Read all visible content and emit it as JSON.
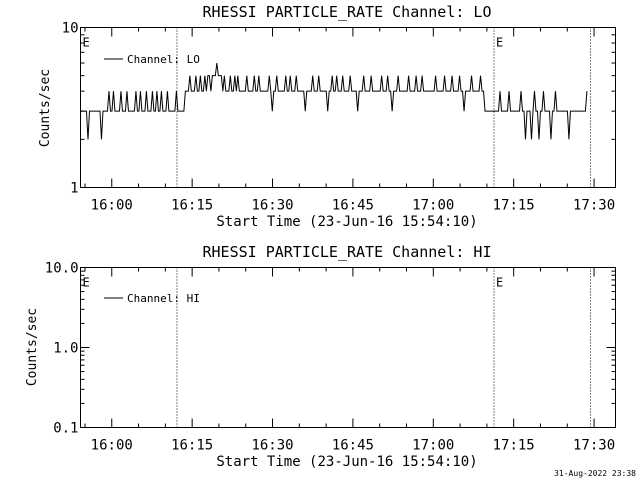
{
  "footer": {
    "timestamp": "31-Aug-2022 23:38"
  },
  "chart_data": [
    {
      "type": "line",
      "title": "RHESSI PARTICLE_RATE Channel: LO",
      "xlabel": "Start Time (23-Jun-16 15:54:10)",
      "ylabel": "Counts/sec",
      "yscale": "log",
      "xlim": [
        "15:54:10",
        "17:34:00"
      ],
      "ylim": [
        1,
        10
      ],
      "xticks": [
        "16:00",
        "16:15",
        "16:30",
        "16:45",
        "17:00",
        "17:15",
        "17:30"
      ],
      "yticks": [
        {
          "value": 1,
          "label": "1"
        },
        {
          "value": 10,
          "label": "10"
        }
      ],
      "vertical_markers": [
        {
          "time": "15:54:10",
          "label": "E"
        },
        {
          "time": "16:12:10",
          "label": ""
        },
        {
          "time": "17:11:20",
          "label": "E"
        },
        {
          "time": "17:29:20",
          "label": ""
        }
      ],
      "legend": {
        "position": "top-left",
        "entries": [
          "Channel: LO"
        ]
      },
      "series": [
        {
          "name": "Channel: LO",
          "time_range": [
            "15:54:10",
            "17:28:40"
          ],
          "values": [
            3,
            3,
            3,
            3,
            3,
            2,
            3,
            3,
            3,
            3,
            3,
            3,
            3,
            3,
            2,
            3,
            3,
            3,
            3,
            4,
            3,
            3,
            4,
            3,
            3,
            3,
            3,
            4,
            3,
            3,
            3,
            4,
            3,
            3,
            3,
            3,
            3,
            4,
            3,
            3,
            4,
            3,
            3,
            3,
            4,
            3,
            3,
            3,
            4,
            3,
            3,
            4,
            3,
            3,
            4,
            3,
            3,
            3,
            4,
            3,
            3,
            3,
            3,
            3,
            4,
            3,
            3,
            3,
            3,
            3,
            4,
            4,
            4,
            5,
            4,
            4,
            4,
            5,
            4,
            4,
            5,
            4,
            4,
            5,
            4,
            5,
            5,
            4,
            5,
            5,
            5,
            6,
            5,
            5,
            5,
            4,
            5,
            4,
            4,
            4,
            5,
            4,
            4,
            5,
            4,
            5,
            4,
            4,
            4,
            4,
            4,
            5,
            4,
            4,
            4,
            4,
            5,
            4,
            4,
            5,
            4,
            4,
            4,
            4,
            4,
            4,
            5,
            4,
            3,
            4,
            4,
            5,
            4,
            4,
            4,
            4,
            4,
            5,
            4,
            4,
            5,
            4,
            4,
            4,
            5,
            4,
            4,
            4,
            4,
            4,
            3,
            4,
            4,
            4,
            4,
            5,
            4,
            4,
            4,
            5,
            4,
            4,
            4,
            4,
            4,
            3,
            4,
            4,
            5,
            4,
            4,
            5,
            4,
            4,
            4,
            5,
            4,
            4,
            4,
            4,
            5,
            4,
            4,
            4,
            4,
            3,
            4,
            4,
            4,
            5,
            4,
            4,
            4,
            4,
            5,
            4,
            4,
            4,
            4,
            4,
            4,
            5,
            4,
            4,
            4,
            5,
            4,
            4,
            3,
            4,
            4,
            4,
            5,
            4,
            4,
            4,
            4,
            4,
            4,
            5,
            4,
            4,
            4,
            4,
            5,
            4,
            4,
            4,
            5,
            4,
            4,
            4,
            4,
            4,
            4,
            4,
            4,
            5,
            4,
            4,
            4,
            4,
            4,
            5,
            4,
            4,
            4,
            4,
            5,
            4,
            4,
            4,
            4,
            5,
            4,
            4,
            3,
            4,
            4,
            4,
            4,
            5,
            4,
            4,
            4,
            4,
            4,
            5,
            4,
            4,
            3,
            3,
            3,
            3,
            3,
            3,
            3,
            3,
            3,
            3,
            4,
            3,
            3,
            3,
            3,
            3,
            4,
            3,
            3,
            3,
            3,
            3,
            3,
            3,
            4,
            3,
            3,
            2,
            3,
            3,
            3,
            2,
            3,
            4,
            3,
            3,
            2,
            3,
            3,
            4,
            3,
            3,
            3,
            3,
            2,
            3,
            3,
            4,
            3,
            3,
            3,
            3,
            3,
            3,
            3,
            3,
            2,
            3,
            3,
            3,
            3,
            3,
            3,
            3,
            3,
            3,
            3,
            3,
            4
          ]
        }
      ]
    },
    {
      "type": "line",
      "title": "RHESSI PARTICLE_RATE Channel: HI",
      "xlabel": "Start Time (23-Jun-16 15:54:10)",
      "ylabel": "Counts/sec",
      "yscale": "log",
      "xlim": [
        "15:54:10",
        "17:34:00"
      ],
      "ylim": [
        0.1,
        10
      ],
      "xticks": [
        "16:00",
        "16:15",
        "16:30",
        "16:45",
        "17:00",
        "17:15",
        "17:30"
      ],
      "yticks": [
        {
          "value": 0.1,
          "label": "0.1"
        },
        {
          "value": 1,
          "label": "1.0"
        },
        {
          "value": 10,
          "label": "10.0"
        }
      ],
      "vertical_markers": [
        {
          "time": "15:54:10",
          "label": "E"
        },
        {
          "time": "16:12:10",
          "label": ""
        },
        {
          "time": "17:11:20",
          "label": "E"
        },
        {
          "time": "17:29:20",
          "label": ""
        }
      ],
      "legend": {
        "position": "top-left",
        "entries": [
          "Channel: HI"
        ]
      },
      "series": [
        {
          "name": "Channel: HI",
          "values": []
        }
      ]
    }
  ]
}
